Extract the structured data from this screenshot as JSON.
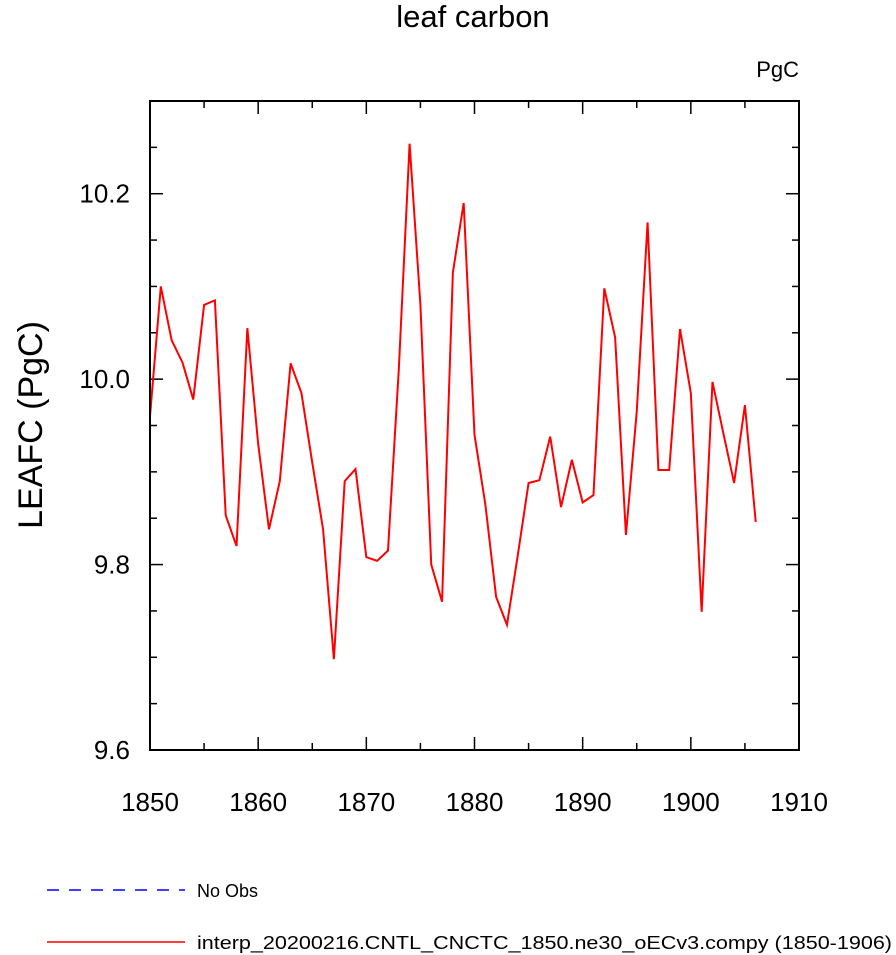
{
  "chart_data": {
    "type": "line",
    "title": "leaf carbon",
    "units_label": "PgC",
    "ylabel": "LEAFC  (PgC)",
    "xlabel": "",
    "xlim": [
      1850,
      1910
    ],
    "ylim": [
      9.6,
      10.3
    ],
    "x_ticks": [
      1850,
      1860,
      1870,
      1880,
      1890,
      1900,
      1910
    ],
    "y_ticks": [
      9.6,
      9.8,
      10.0,
      10.2
    ],
    "y_tick_labels": [
      "9.6",
      "9.8",
      "10.0",
      "10.2"
    ],
    "grid": false,
    "legend_position": "bottom",
    "legend": [
      {
        "label": "No Obs",
        "color": "#0000ff",
        "style": "dashed"
      },
      {
        "label": "interp_20200216.CNTL_CNCTC_1850.ne30_oECv3.compy (1850-1906)",
        "color": "#ff0000",
        "style": "solid"
      }
    ],
    "series": [
      {
        "name": "interp_20200216.CNTL_CNCTC_1850.ne30_oECv3.compy (1850-1906)",
        "color": "#ff0000",
        "x": [
          1850,
          1851,
          1852,
          1853,
          1854,
          1855,
          1856,
          1857,
          1858,
          1859,
          1860,
          1861,
          1862,
          1863,
          1864,
          1865,
          1866,
          1867,
          1868,
          1869,
          1870,
          1871,
          1872,
          1873,
          1874,
          1875,
          1876,
          1877,
          1878,
          1879,
          1880,
          1881,
          1882,
          1883,
          1884,
          1885,
          1886,
          1887,
          1888,
          1889,
          1890,
          1891,
          1892,
          1893,
          1894,
          1895,
          1896,
          1897,
          1898,
          1899,
          1900,
          1901,
          1902,
          1903,
          1904,
          1905,
          1906
        ],
        "y": [
          9.96,
          10.1,
          10.042,
          10.018,
          9.978,
          10.08,
          10.085,
          9.853,
          9.82,
          10.055,
          9.93,
          9.838,
          9.89,
          10.017,
          9.985,
          9.91,
          9.838,
          9.698,
          9.89,
          9.903,
          9.808,
          9.804,
          9.815,
          10.01,
          10.254,
          10.08,
          9.8,
          9.76,
          10.115,
          10.19,
          9.94,
          9.865,
          9.765,
          9.735,
          9.81,
          9.888,
          9.891,
          9.938,
          9.862,
          9.913,
          9.867,
          9.875,
          10.098,
          10.045,
          9.832,
          9.965,
          10.169,
          9.902,
          9.902,
          10.054,
          9.985,
          9.749,
          9.997,
          9.942,
          9.888,
          9.972,
          9.846
        ]
      }
    ]
  }
}
